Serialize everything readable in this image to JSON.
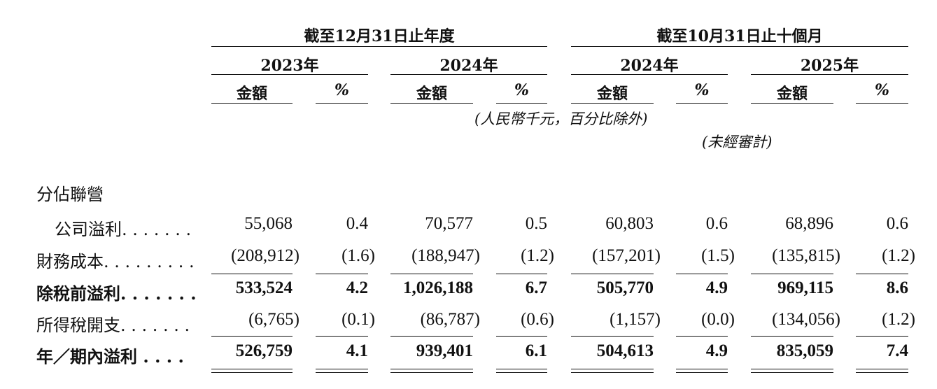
{
  "header": {
    "period_group_1": "截至12月31日止年度",
    "period_group_2": "截至10月31日止十個月",
    "years": [
      "2023年",
      "2024年",
      "2024年",
      "2025年"
    ],
    "amount_label": "金額",
    "pct_label": "%",
    "unit_note": "(人民幣千元，百分比除外)",
    "unaudited_note": "(未經審計)"
  },
  "section_label": "分佔聯營",
  "rows": [
    {
      "label": "公司溢利. . . . . . .",
      "bold": false,
      "values": [
        "55,068",
        "0.4",
        "70,577",
        "0.5",
        "60,803",
        "0.6",
        "68,896",
        "0.6"
      ]
    },
    {
      "label": "財務成本. . . . . . . . .",
      "bold": false,
      "values": [
        "(208,912)",
        "(1.6)",
        "(188,947)",
        "(1.2)",
        "(157,201)",
        "(1.5)",
        "(135,815)",
        "(1.2)"
      ]
    },
    {
      "label": "除稅前溢利. . . . . . .",
      "bold": true,
      "values": [
        "533,524",
        "4.2",
        "1,026,188",
        "6.7",
        "505,770",
        "4.9",
        "969,115",
        "8.6"
      ]
    },
    {
      "label": "所得稅開支. . . . . . .",
      "bold": false,
      "values": [
        "(6,765)",
        "(0.1)",
        "(86,787)",
        "(0.6)",
        "(1,157)",
        "(0.0)",
        "(134,056)",
        "(1.2)"
      ]
    },
    {
      "label": "年／期內溢利 . . . .",
      "bold": true,
      "values": [
        "526,759",
        "4.1",
        "939,401",
        "6.1",
        "504,613",
        "4.9",
        "835,059",
        "7.4"
      ]
    }
  ]
}
